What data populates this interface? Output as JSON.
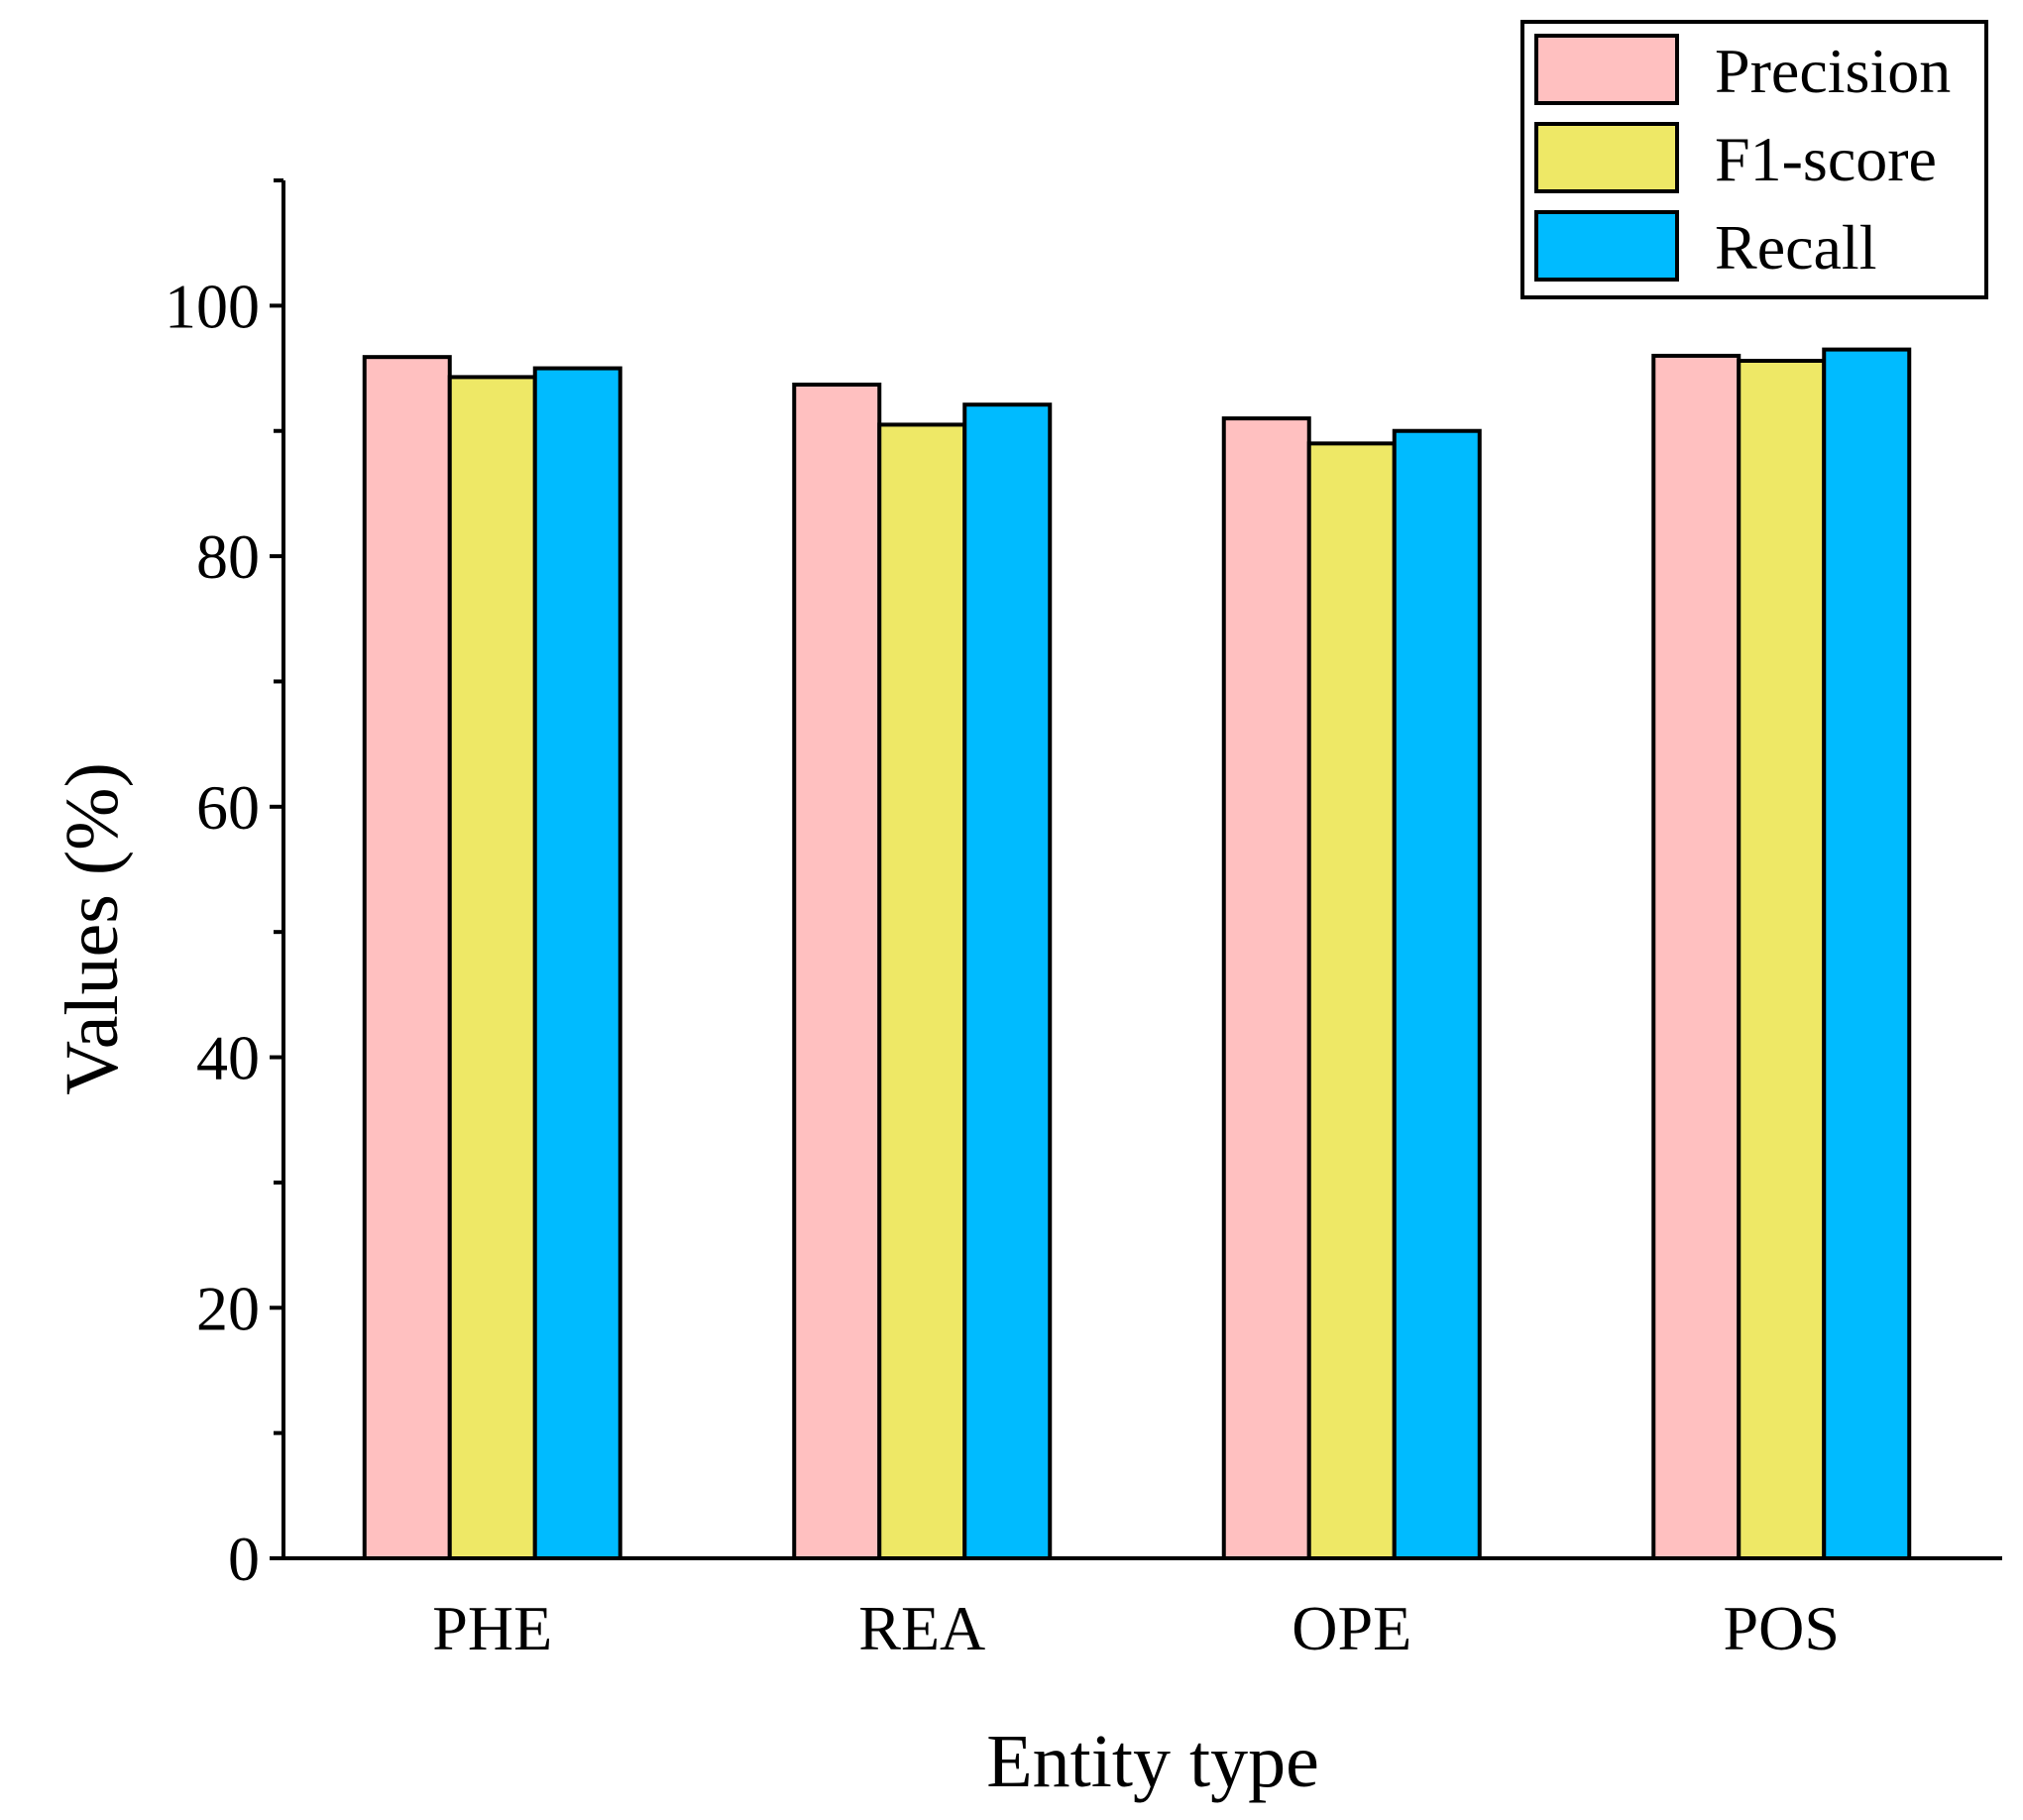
{
  "chart_data": {
    "type": "bar",
    "categories": [
      "PHE",
      "REA",
      "OPE",
      "POS"
    ],
    "series": [
      {
        "name": "Precision",
        "color": "#FFC0C0",
        "values": [
          95.9,
          93.7,
          91.0,
          96.0
        ]
      },
      {
        "name": "F1-score",
        "color": "#EEE866",
        "values": [
          94.3,
          90.5,
          89.0,
          95.6
        ]
      },
      {
        "name": "Recall",
        "color": "#00BBFF",
        "values": [
          95.0,
          92.1,
          90.0,
          96.5
        ]
      }
    ],
    "title": "",
    "xlabel": "Entity type",
    "ylabel": "Values (%)",
    "ylim": [
      0,
      110
    ],
    "yticks": [
      0,
      20,
      40,
      60,
      80,
      100
    ],
    "grid": false,
    "legend_position": "top-right"
  }
}
